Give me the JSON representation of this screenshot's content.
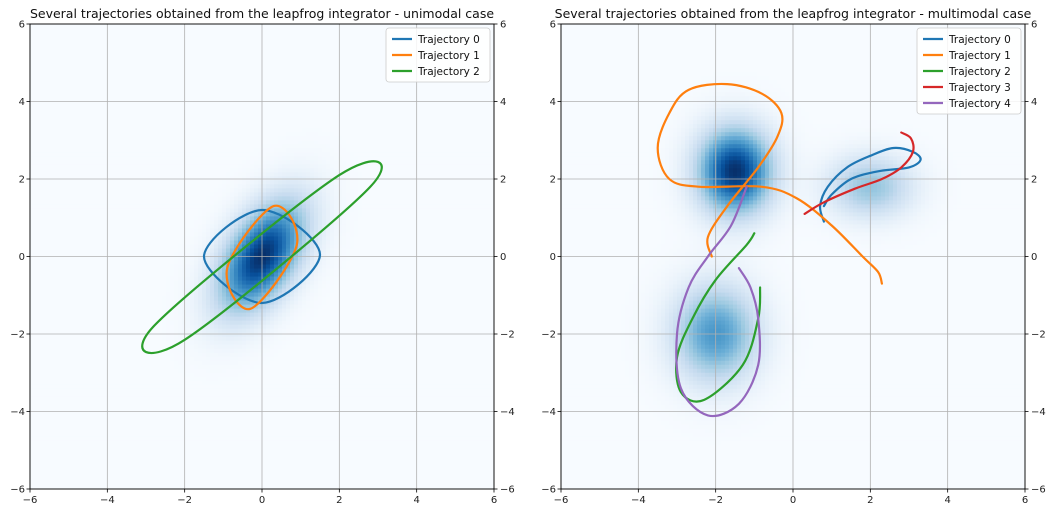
{
  "chart_data": [
    {
      "type": "line",
      "title": "Several trajectories obtained from the leapfrog integrator - unimodal case",
      "xlim": [
        -6,
        6
      ],
      "ylim": [
        -6,
        6
      ],
      "xticks": [
        "−6",
        "−4",
        "−2",
        "0",
        "2",
        "4",
        "6"
      ],
      "yticks": [
        "−6",
        "−4",
        "−2",
        "0",
        "2",
        "4",
        "6"
      ],
      "grid": true,
      "legend_position": "top-right",
      "background": "density heatmap, Blues colormap",
      "modes": [
        {
          "center": [
            0,
            0
          ],
          "sx": 0.75,
          "sy": 0.95,
          "rho": 0.5,
          "weight": 1.0
        }
      ],
      "series": [
        {
          "name": "Trajectory 0",
          "color": "#1f77b4",
          "shape": "ellipse",
          "center": [
            0,
            0
          ],
          "points": [
            [
              1.5,
              0.05
            ],
            [
              0,
              1.2
            ],
            [
              -1.5,
              0
            ],
            [
              0,
              -1.2
            ],
            [
              1.5,
              0.05
            ]
          ]
        },
        {
          "name": "Trajectory 1",
          "color": "#ff7f0e",
          "shape": "ellipse",
          "center": [
            0,
            0
          ],
          "points": [
            [
              0.9,
              0.3
            ],
            [
              0.3,
              1.3
            ],
            [
              -0.9,
              -0.3
            ],
            [
              -0.3,
              -1.35
            ],
            [
              0.9,
              0.3
            ]
          ]
        },
        {
          "name": "Trajectory 2",
          "color": "#2ca02c",
          "shape": "ellipse",
          "center": [
            0,
            0
          ],
          "points": [
            [
              2.8,
              1.8
            ],
            [
              2,
              2.1
            ],
            [
              -2.8,
              -1.8
            ],
            [
              -2,
              -2.15
            ],
            [
              2.8,
              1.8
            ]
          ]
        }
      ]
    },
    {
      "type": "line",
      "title": "Several trajectories obtained from the leapfrog integrator - multimodal case",
      "xlim": [
        -6,
        6
      ],
      "ylim": [
        -6,
        6
      ],
      "xticks": [
        "−6",
        "−4",
        "−2",
        "0",
        "2",
        "4",
        "6"
      ],
      "yticks": [
        "−6",
        "−4",
        "−2",
        "0",
        "2",
        "4",
        "6"
      ],
      "grid": true,
      "legend_position": "top-right",
      "background": "density heatmap, Blues colormap",
      "modes": [
        {
          "center": [
            -1.5,
            2.2
          ],
          "sx": 0.65,
          "sy": 0.75,
          "rho": 0,
          "weight": 1.0
        },
        {
          "center": [
            -2,
            -2
          ],
          "sx": 0.75,
          "sy": 0.85,
          "rho": 0,
          "weight": 0.6
        },
        {
          "center": [
            2,
            1.8
          ],
          "sx": 0.75,
          "sy": 0.55,
          "rho": 0,
          "weight": 0.4
        }
      ],
      "series": [
        {
          "name": "Trajectory 0",
          "color": "#1f77b4",
          "points": [
            [
              0.8,
              0.9
            ],
            [
              0.7,
              1.3
            ],
            [
              0.9,
              1.8
            ],
            [
              1.4,
              2.3
            ],
            [
              2,
              2.6
            ],
            [
              2.6,
              2.8
            ],
            [
              3.1,
              2.7
            ],
            [
              3.3,
              2.5
            ],
            [
              3,
              2.3
            ],
            [
              2.2,
              2.2
            ],
            [
              1.5,
              2.0
            ],
            [
              1.0,
              1.6
            ],
            [
              0.8,
              1.3
            ]
          ]
        },
        {
          "name": "Trajectory 1",
          "color": "#ff7f0e",
          "points": [
            [
              2.3,
              -0.7
            ],
            [
              2.2,
              -0.4
            ],
            [
              1.8,
              0
            ],
            [
              1,
              0.8
            ],
            [
              0.1,
              1.5
            ],
            [
              -0.8,
              1.8
            ],
            [
              -2.4,
              1.8
            ],
            [
              -3.2,
              2
            ],
            [
              -3.5,
              2.8
            ],
            [
              -3.2,
              3.7
            ],
            [
              -2.7,
              4.3
            ],
            [
              -1.7,
              4.45
            ],
            [
              -0.8,
              4.2
            ],
            [
              -0.3,
              3.7
            ],
            [
              -0.4,
              3.1
            ],
            [
              -0.9,
              2.3
            ],
            [
              -1.7,
              1.3
            ],
            [
              -2.2,
              0.5
            ],
            [
              -2.1,
              0
            ]
          ]
        },
        {
          "name": "Trajectory 2",
          "color": "#2ca02c",
          "points": [
            [
              -1.0,
              0.6
            ],
            [
              -1.2,
              0.3
            ],
            [
              -2,
              -0.6
            ],
            [
              -2.6,
              -1.6
            ],
            [
              -3,
              -2.6
            ],
            [
              -2.9,
              -3.5
            ],
            [
              -2.3,
              -3.7
            ],
            [
              -1.3,
              -2.8
            ],
            [
              -0.9,
              -1.6
            ],
            [
              -0.85,
              -0.8
            ]
          ]
        },
        {
          "name": "Trajectory 3",
          "color": "#d62728",
          "points": [
            [
              0.3,
              1.1
            ],
            [
              0.8,
              1.4
            ],
            [
              1.6,
              1.75
            ],
            [
              2.3,
              2.0
            ],
            [
              2.8,
              2.3
            ],
            [
              3.1,
              2.7
            ],
            [
              3.05,
              3.05
            ],
            [
              2.8,
              3.2
            ]
          ]
        },
        {
          "name": "Trajectory 4",
          "color": "#9467bd",
          "points": [
            [
              -1.2,
              1.8
            ],
            [
              -1.6,
              0.8
            ],
            [
              -2.2,
              0
            ],
            [
              -2.7,
              -0.8
            ],
            [
              -3,
              -2
            ],
            [
              -2.9,
              -3.4
            ],
            [
              -2.2,
              -4.1
            ],
            [
              -1.4,
              -3.8
            ],
            [
              -0.9,
              -2.8
            ],
            [
              -0.9,
              -1.6
            ],
            [
              -1.1,
              -0.8
            ],
            [
              -1.4,
              -0.3
            ]
          ]
        }
      ]
    }
  ]
}
